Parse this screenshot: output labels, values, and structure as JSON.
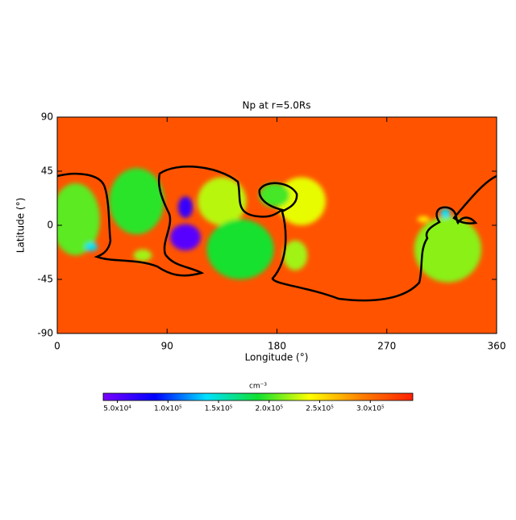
{
  "chart_data": {
    "type": "map",
    "title": "Np at r=5.0Rs",
    "x_label": "Longitude (°)",
    "y_label": "Latitude (°)",
    "xlim": [
      0,
      360
    ],
    "xticks": [
      0,
      90,
      180,
      270,
      360
    ],
    "ylim": [
      -90,
      90
    ],
    "yticks": [
      -90,
      -45,
      0,
      45,
      90
    ],
    "colorbar_label": "cm⁻³",
    "clim": [
      36000,
      342000
    ],
    "cticks": [
      {
        "value": 50000,
        "label": "5.0x10⁴"
      },
      {
        "value": 100000,
        "label": "1.0x10⁵"
      },
      {
        "value": 150000,
        "label": "1.5x10⁵"
      },
      {
        "value": 200000,
        "label": "2.0x10⁵"
      },
      {
        "value": 250000,
        "label": "2.5x10⁵"
      },
      {
        "value": 300000,
        "label": "3.0x10⁵"
      }
    ],
    "colormap": [
      "#7a00ff",
      "#0000ff",
      "#00e0ff",
      "#10e030",
      "#ffff00",
      "#ff8000",
      "#ff2000"
    ],
    "background": 315000,
    "regions": [
      {
        "lon": 15,
        "lat": 5,
        "value": 205000,
        "size": [
          40,
          60
        ]
      },
      {
        "lon": 65,
        "lat": 20,
        "value": 195000,
        "size": [
          45,
          55
        ]
      },
      {
        "lon": 135,
        "lat": 20,
        "value": 225000,
        "size": [
          40,
          40
        ]
      },
      {
        "lon": 150,
        "lat": -20,
        "value": 190000,
        "size": [
          55,
          50
        ]
      },
      {
        "lon": 200,
        "lat": 20,
        "value": 235000,
        "size": [
          40,
          40
        ]
      },
      {
        "lon": 195,
        "lat": -25,
        "value": 220000,
        "size": [
          20,
          25
        ]
      },
      {
        "lon": 70,
        "lat": -25,
        "value": 220000,
        "size": [
          15,
          10
        ]
      },
      {
        "lon": 178,
        "lat": 25,
        "value": 200000,
        "size": [
          25,
          20
        ]
      },
      {
        "lon": 320,
        "lat": -20,
        "value": 215000,
        "size": [
          55,
          55
        ]
      },
      {
        "lon": 300,
        "lat": 5,
        "value": 245000,
        "size": [
          10,
          5
        ]
      },
      {
        "lon": 28,
        "lat": -18,
        "value": 140000,
        "size": [
          10,
          7
        ]
      },
      {
        "lon": 318,
        "lat": 10,
        "value": 140000,
        "size": [
          8,
          8
        ]
      },
      {
        "lon": 105,
        "lat": 15,
        "value": 65000,
        "size": [
          12,
          18
        ]
      },
      {
        "lon": 105,
        "lat": -10,
        "value": 50000,
        "size": [
          25,
          22
        ]
      }
    ]
  }
}
